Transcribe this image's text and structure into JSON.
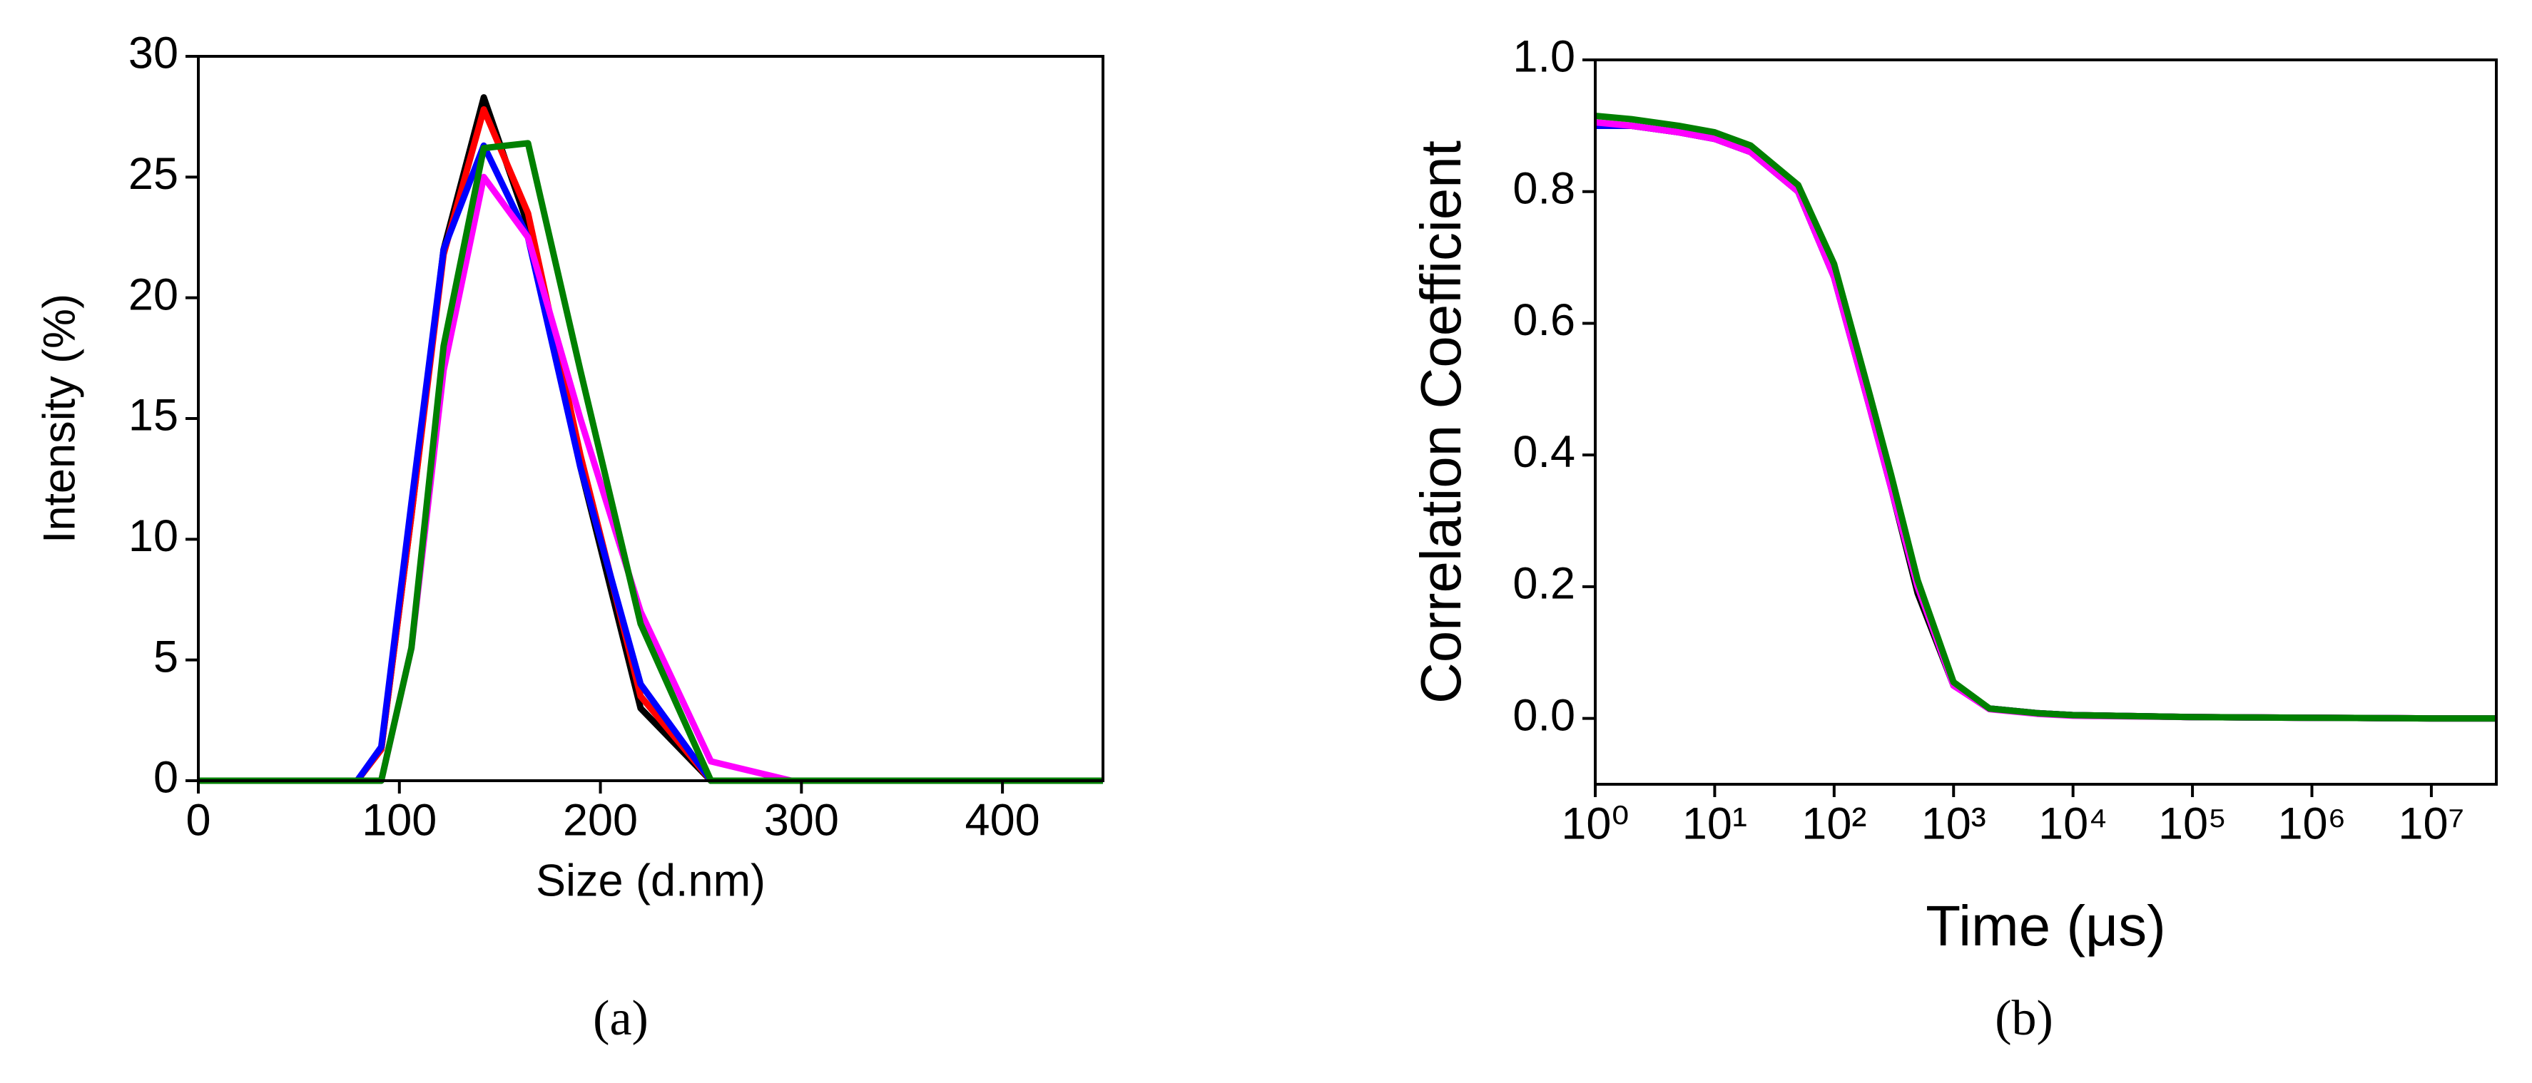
{
  "chart_data": [
    {
      "type": "line",
      "caption": "(a)",
      "xlabel": "Size (d.nm)",
      "ylabel": "Intensity (%)",
      "x": [
        0,
        79,
        91,
        106,
        122,
        142,
        164,
        190,
        220,
        255,
        295,
        342,
        396,
        450
      ],
      "series": [
        {
          "color": "#000000",
          "values": [
            0,
            0,
            1.3,
            11,
            22,
            28.3,
            23,
            13,
            3,
            0,
            0,
            0,
            0,
            0
          ]
        },
        {
          "color": "#ff0000",
          "values": [
            0,
            0,
            1.3,
            11,
            21.8,
            27.8,
            23.5,
            13.5,
            3.5,
            0,
            0,
            0,
            0,
            0
          ]
        },
        {
          "color": "#0000ff",
          "values": [
            0,
            0,
            1.4,
            11.5,
            22,
            26.3,
            22.5,
            13,
            4,
            0,
            0,
            0,
            0,
            0
          ]
        },
        {
          "color": "#ff00ff",
          "values": [
            0,
            0,
            0,
            5.5,
            17,
            25,
            22.5,
            15,
            7,
            0.8,
            0,
            0,
            0,
            0
          ]
        },
        {
          "color": "#008000",
          "values": [
            0,
            0,
            0,
            5.5,
            18,
            26.2,
            26.4,
            17,
            6.5,
            0,
            0,
            0,
            0,
            0
          ]
        }
      ],
      "xlim": [
        0,
        450
      ],
      "xticks": [
        0,
        100,
        200,
        300,
        400
      ],
      "ylim": [
        0,
        30
      ],
      "yticks": [
        0,
        5,
        10,
        15,
        20,
        25,
        30
      ]
    },
    {
      "type": "line",
      "caption": "(b)",
      "xlabel": "Time (μs)",
      "ylabel": "Correlation Coefficient",
      "xscale": "log",
      "x": [
        1,
        2,
        5,
        10,
        20,
        50,
        100,
        200,
        300,
        500,
        1000,
        2000,
        5000,
        10000,
        100000,
        1000000,
        10000000,
        35000000
      ],
      "series": [
        {
          "color": "#000000",
          "values": [
            0.9,
            0.9,
            0.89,
            0.88,
            0.86,
            0.8,
            0.67,
            0.47,
            0.35,
            0.19,
            0.05,
            0.015,
            0.008,
            0.005,
            0.002,
            0.001,
            0,
            0
          ]
        },
        {
          "color": "#ff0000",
          "values": [
            0.905,
            0.9,
            0.89,
            0.88,
            0.86,
            0.8,
            0.67,
            0.47,
            0.35,
            0.2,
            0.05,
            0.015,
            0.008,
            0.005,
            0.002,
            0.001,
            0,
            0
          ]
        },
        {
          "color": "#0000ff",
          "values": [
            0.9,
            0.9,
            0.89,
            0.88,
            0.86,
            0.8,
            0.67,
            0.47,
            0.35,
            0.2,
            0.05,
            0.015,
            0.008,
            0.005,
            0.002,
            0.001,
            0,
            0
          ]
        },
        {
          "color": "#ff00ff",
          "values": [
            0.905,
            0.9,
            0.89,
            0.88,
            0.86,
            0.8,
            0.67,
            0.47,
            0.35,
            0.2,
            0.05,
            0.014,
            0.007,
            0.004,
            0.002,
            0.001,
            0,
            0
          ]
        },
        {
          "color": "#008000",
          "values": [
            0.915,
            0.91,
            0.9,
            0.89,
            0.87,
            0.81,
            0.69,
            0.49,
            0.37,
            0.21,
            0.055,
            0.015,
            0.008,
            0.005,
            0.002,
            0.001,
            0,
            0
          ]
        }
      ],
      "xlim": [
        1,
        35000000
      ],
      "xticks": [
        {
          "value": 1,
          "label": "10⁰"
        },
        {
          "value": 10,
          "label": "10¹"
        },
        {
          "value": 100,
          "label": "10²"
        },
        {
          "value": 1000,
          "label": "10³"
        },
        {
          "value": 10000,
          "label": "10⁴"
        },
        {
          "value": 100000,
          "label": "10⁵"
        },
        {
          "value": 1000000,
          "label": "10⁶"
        },
        {
          "value": 10000000,
          "label": "10⁷"
        }
      ],
      "ylim": [
        -0.1,
        1.0
      ],
      "yticks": [
        {
          "value": 0,
          "label": "0.0"
        },
        0.2,
        0.4,
        0.6,
        0.8,
        {
          "value": 1,
          "label": "1.0"
        }
      ]
    }
  ]
}
